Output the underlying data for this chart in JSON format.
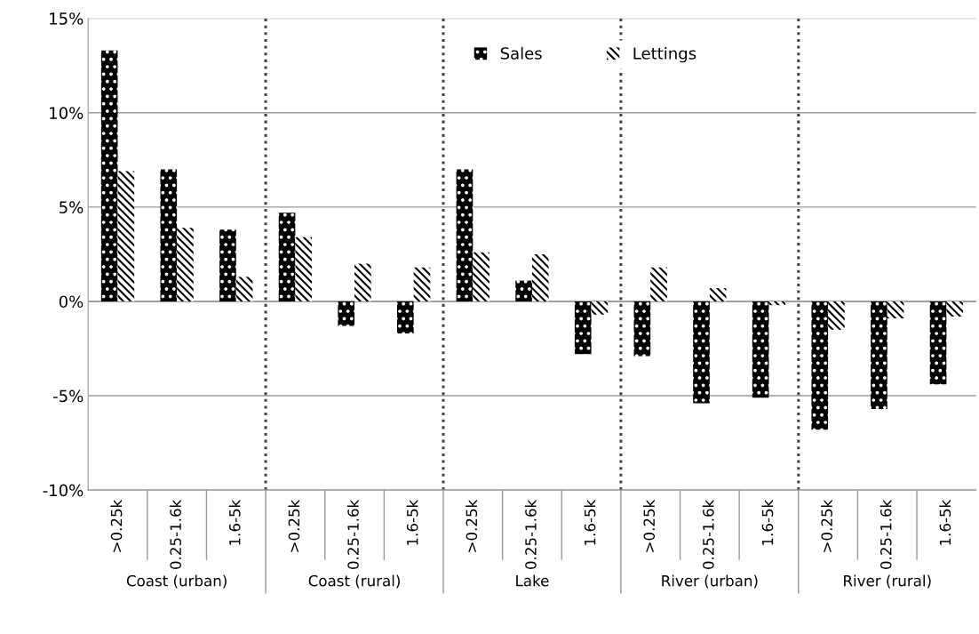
{
  "chart_data": {
    "type": "bar",
    "categories": [
      ">0.25k",
      "0.25-1.6k",
      "1.6-5k",
      ">0.25k",
      "0.25-1.6k",
      "1.6-5k",
      ">0.25k",
      "0.25-1.6k",
      "1.6-5k",
      ">0.25k",
      "0.25-1.6k",
      "1.6-5k",
      ">0.25k",
      "0.25-1.6k",
      "1.6-5k"
    ],
    "annotations": [
      "Coast (urban)",
      "Coast (rural)",
      "Lake",
      "River (urban)",
      "River (rural)"
    ],
    "series": [
      {
        "name": "Sales",
        "color": "#000000",
        "values": [
          13.3,
          7.0,
          3.8,
          4.7,
          -1.3,
          -1.7,
          7.0,
          1.1,
          -2.8,
          -2.9,
          -5.4,
          -5.1,
          -6.8,
          -5.7,
          -4.4
        ]
      },
      {
        "name": "Lettings",
        "color": "#ffffff",
        "values": [
          6.9,
          3.9,
          1.3,
          3.4,
          2.0,
          1.8,
          2.6,
          2.5,
          -0.7,
          1.8,
          0.7,
          -0.2,
          -1.5,
          -0.9,
          -0.8
        ]
      }
    ],
    "ylim": [
      -10,
      15
    ],
    "yticks": [
      {
        "value": -10,
        "label": "-10%"
      },
      {
        "value": -5,
        "label": "-5%"
      },
      {
        "value": 0,
        "label": "0%"
      },
      {
        "value": 5,
        "label": "5%"
      },
      {
        "value": 10,
        "label": "10%"
      },
      {
        "value": 15,
        "label": "15%"
      }
    ],
    "grid": "y",
    "legend": "top"
  }
}
